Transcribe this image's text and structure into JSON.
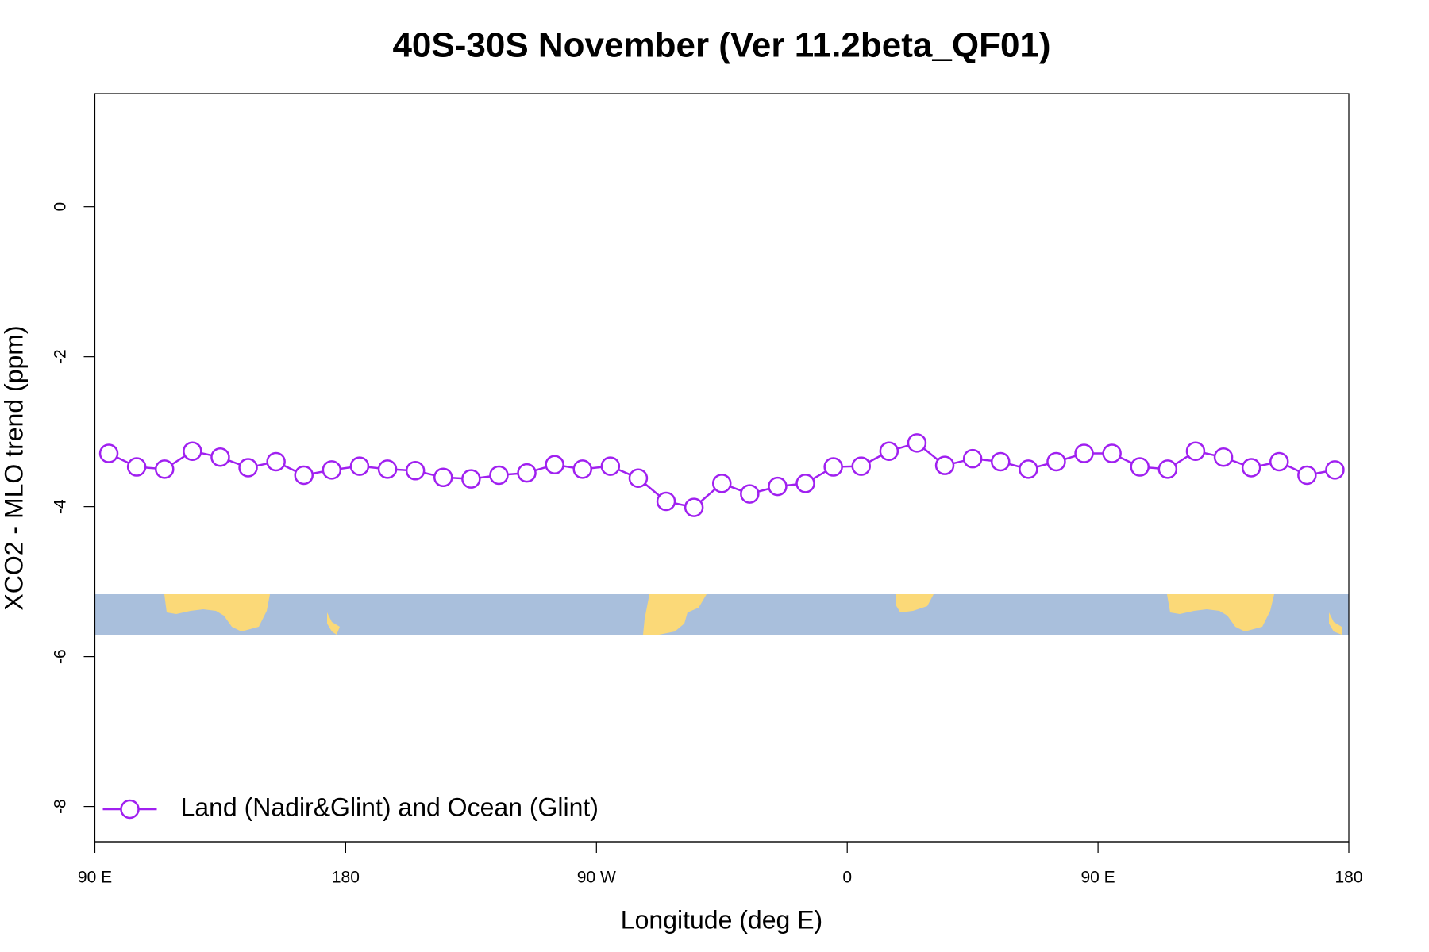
{
  "chart_data": {
    "type": "line",
    "title": "40S-30S November (Ver 11.2beta_QF01)",
    "x_label": "Longitude (deg E)",
    "y_label": "XCO2 - MLO trend (ppm)",
    "x": [
      95,
      105,
      115,
      125,
      135,
      145,
      155,
      165,
      175,
      185,
      195,
      205,
      215,
      225,
      235,
      245,
      255,
      265,
      275,
      285,
      295,
      305,
      315,
      325,
      335,
      345,
      355,
      365,
      375,
      385,
      395,
      405,
      415,
      425,
      435,
      445,
      455,
      465,
      475,
      485,
      495,
      505,
      515,
      525,
      535
    ],
    "series": [
      {
        "name": "Land (Nadir&Glint) and Ocean (Glint)",
        "color": "#a020f0",
        "values": [
          -3.29,
          -3.47,
          -3.5,
          -3.26,
          -3.34,
          -3.48,
          -3.4,
          -3.58,
          -3.51,
          -3.46,
          -3.5,
          -3.52,
          -3.61,
          -3.63,
          -3.58,
          -3.55,
          -3.44,
          -3.5,
          -3.46,
          -3.62,
          -3.93,
          -4.01,
          -3.69,
          -3.83,
          -3.73,
          -3.69,
          -3.47,
          -3.46,
          -3.26,
          -3.15,
          -3.45,
          -3.36,
          -3.4,
          -3.5,
          -3.4,
          -3.29,
          -3.29,
          -3.47,
          -3.5,
          -3.26,
          -3.34,
          -3.48,
          -3.4,
          -3.58,
          -3.51
        ]
      }
    ],
    "xlim": [
      90,
      540
    ],
    "xticks": [
      {
        "value": 90,
        "label": "90 E"
      },
      180,
      {
        "value": 270,
        "label": "90 W"
      },
      {
        "value": 360,
        "label": "0"
      },
      {
        "value": 450,
        "label": "90 E"
      },
      {
        "value": 540,
        "label": "180"
      }
    ],
    "ylim": [
      -8.47,
      1.51
    ],
    "yticks": [
      -8,
      -6,
      -4,
      -2,
      0
    ],
    "legend_position": "bottomleft"
  }
}
